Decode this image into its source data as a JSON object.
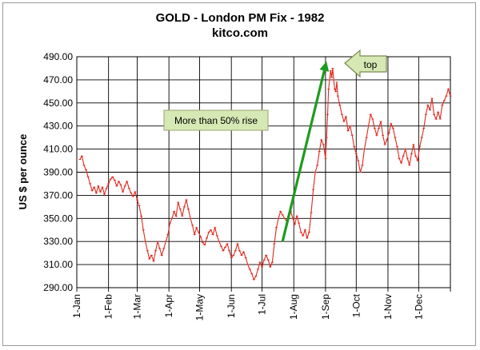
{
  "chart_data": {
    "type": "line",
    "title": "GOLD  -  London PM Fix  -  1982",
    "subtitle": "kitco.com",
    "ylabel": "US $ per ounce",
    "xlabel": "",
    "ylim": [
      290,
      490
    ],
    "xlim": [
      1,
      366
    ],
    "grid": true,
    "y_ticks": [
      "290.00",
      "310.00",
      "330.00",
      "350.00",
      "370.00",
      "390.00",
      "410.00",
      "430.00",
      "450.00",
      "470.00",
      "490.00"
    ],
    "x_ticks": [
      {
        "label": "1-Jan",
        "day": 1
      },
      {
        "label": "1-Feb",
        "day": 32
      },
      {
        "label": "1-Mar",
        "day": 60
      },
      {
        "label": "1-Apr",
        "day": 91
      },
      {
        "label": "1-May",
        "day": 121
      },
      {
        "label": "1-Jun",
        "day": 152
      },
      {
        "label": "1-Jul",
        "day": 182
      },
      {
        "label": "1-Aug",
        "day": 213
      },
      {
        "label": "1-Sep",
        "day": 244
      },
      {
        "label": "1-Oct",
        "day": 274
      },
      {
        "label": "1-Nov",
        "day": 305
      },
      {
        "label": "1-Dec",
        "day": 335
      }
    ],
    "series": [
      {
        "color": "#e0281e",
        "points": [
          [
            4,
            401
          ],
          [
            6,
            404
          ],
          [
            8,
            396
          ],
          [
            10,
            392
          ],
          [
            12,
            386
          ],
          [
            14,
            380
          ],
          [
            16,
            374
          ],
          [
            18,
            377
          ],
          [
            20,
            372
          ],
          [
            22,
            378
          ],
          [
            24,
            373
          ],
          [
            26,
            377
          ],
          [
            28,
            371
          ],
          [
            30,
            376
          ],
          [
            32,
            380
          ],
          [
            34,
            384
          ],
          [
            36,
            386
          ],
          [
            38,
            383
          ],
          [
            40,
            378
          ],
          [
            42,
            382
          ],
          [
            44,
            379
          ],
          [
            46,
            373
          ],
          [
            48,
            378
          ],
          [
            50,
            382
          ],
          [
            52,
            376
          ],
          [
            54,
            372
          ],
          [
            56,
            369
          ],
          [
            58,
            373
          ],
          [
            60,
            366
          ],
          [
            62,
            361
          ],
          [
            64,
            352
          ],
          [
            66,
            340
          ],
          [
            68,
            330
          ],
          [
            70,
            322
          ],
          [
            72,
            315
          ],
          [
            74,
            318
          ],
          [
            76,
            313
          ],
          [
            78,
            322
          ],
          [
            80,
            330
          ],
          [
            82,
            324
          ],
          [
            84,
            318
          ],
          [
            86,
            324
          ],
          [
            88,
            330
          ],
          [
            90,
            336
          ],
          [
            92,
            346
          ],
          [
            94,
            350
          ],
          [
            96,
            356
          ],
          [
            98,
            352
          ],
          [
            100,
            364
          ],
          [
            102,
            358
          ],
          [
            104,
            352
          ],
          [
            106,
            360
          ],
          [
            108,
            366
          ],
          [
            110,
            358
          ],
          [
            112,
            350
          ],
          [
            114,
            344
          ],
          [
            116,
            336
          ],
          [
            118,
            342
          ],
          [
            120,
            338
          ],
          [
            122,
            334
          ],
          [
            124,
            329
          ],
          [
            126,
            327
          ],
          [
            128,
            333
          ],
          [
            130,
            338
          ],
          [
            132,
            340
          ],
          [
            134,
            336
          ],
          [
            136,
            342
          ],
          [
            138,
            335
          ],
          [
            140,
            330
          ],
          [
            142,
            326
          ],
          [
            144,
            322
          ],
          [
            146,
            325
          ],
          [
            148,
            328
          ],
          [
            150,
            322
          ],
          [
            152,
            316
          ],
          [
            154,
            318
          ],
          [
            156,
            322
          ],
          [
            158,
            328
          ],
          [
            160,
            322
          ],
          [
            162,
            318
          ],
          [
            164,
            321
          ],
          [
            166,
            316
          ],
          [
            168,
            310
          ],
          [
            170,
            306
          ],
          [
            172,
            302
          ],
          [
            174,
            297
          ],
          [
            176,
            300
          ],
          [
            178,
            306
          ],
          [
            180,
            312
          ],
          [
            182,
            308
          ],
          [
            184,
            314
          ],
          [
            186,
            318
          ],
          [
            188,
            314
          ],
          [
            190,
            308
          ],
          [
            192,
            312
          ],
          [
            194,
            328
          ],
          [
            196,
            342
          ],
          [
            198,
            350
          ],
          [
            200,
            356
          ],
          [
            202,
            353
          ],
          [
            204,
            350
          ],
          [
            206,
            348
          ],
          [
            208,
            352
          ],
          [
            210,
            356
          ],
          [
            212,
            350
          ],
          [
            214,
            345
          ],
          [
            216,
            352
          ],
          [
            218,
            346
          ],
          [
            220,
            338
          ],
          [
            222,
            335
          ],
          [
            224,
            340
          ],
          [
            226,
            333
          ],
          [
            228,
            338
          ],
          [
            230,
            355
          ],
          [
            232,
            375
          ],
          [
            234,
            390
          ],
          [
            236,
            396
          ],
          [
            238,
            408
          ],
          [
            240,
            418
          ],
          [
            242,
            414
          ],
          [
            244,
            402
          ],
          [
            245,
            420
          ],
          [
            246,
            440
          ],
          [
            247,
            462
          ],
          [
            248,
            470
          ],
          [
            249,
            478
          ],
          [
            250,
            472
          ],
          [
            251,
            480
          ],
          [
            252,
            470
          ],
          [
            253,
            462
          ],
          [
            254,
            460
          ],
          [
            255,
            468
          ],
          [
            256,
            456
          ],
          [
            258,
            448
          ],
          [
            260,
            440
          ],
          [
            262,
            434
          ],
          [
            264,
            438
          ],
          [
            266,
            426
          ],
          [
            268,
            430
          ],
          [
            270,
            422
          ],
          [
            272,
            412
          ],
          [
            274,
            406
          ],
          [
            276,
            400
          ],
          [
            278,
            390
          ],
          [
            280,
            396
          ],
          [
            282,
            410
          ],
          [
            284,
            420
          ],
          [
            286,
            430
          ],
          [
            288,
            440
          ],
          [
            290,
            436
          ],
          [
            292,
            428
          ],
          [
            294,
            422
          ],
          [
            296,
            428
          ],
          [
            298,
            434
          ],
          [
            300,
            422
          ],
          [
            302,
            414
          ],
          [
            304,
            418
          ],
          [
            306,
            424
          ],
          [
            308,
            432
          ],
          [
            310,
            428
          ],
          [
            312,
            420
          ],
          [
            314,
            412
          ],
          [
            316,
            402
          ],
          [
            318,
            398
          ],
          [
            320,
            404
          ],
          [
            322,
            410
          ],
          [
            324,
            402
          ],
          [
            326,
            396
          ],
          [
            328,
            406
          ],
          [
            330,
            414
          ],
          [
            332,
            404
          ],
          [
            334,
            400
          ],
          [
            336,
            412
          ],
          [
            338,
            420
          ],
          [
            340,
            428
          ],
          [
            342,
            440
          ],
          [
            344,
            448
          ],
          [
            346,
            444
          ],
          [
            348,
            454
          ],
          [
            350,
            440
          ],
          [
            352,
            436
          ],
          [
            354,
            442
          ],
          [
            356,
            436
          ],
          [
            358,
            448
          ],
          [
            360,
            452
          ],
          [
            362,
            456
          ],
          [
            364,
            462
          ],
          [
            366,
            456
          ]
        ]
      }
    ],
    "annotations": [
      {
        "text": "More than 50% rise",
        "kind": "box"
      },
      {
        "text": "top",
        "kind": "callout-arrow"
      }
    ],
    "arrow": {
      "from": [
        202,
        330
      ],
      "to": [
        245,
        486
      ],
      "color": "#1e9a1e"
    }
  }
}
